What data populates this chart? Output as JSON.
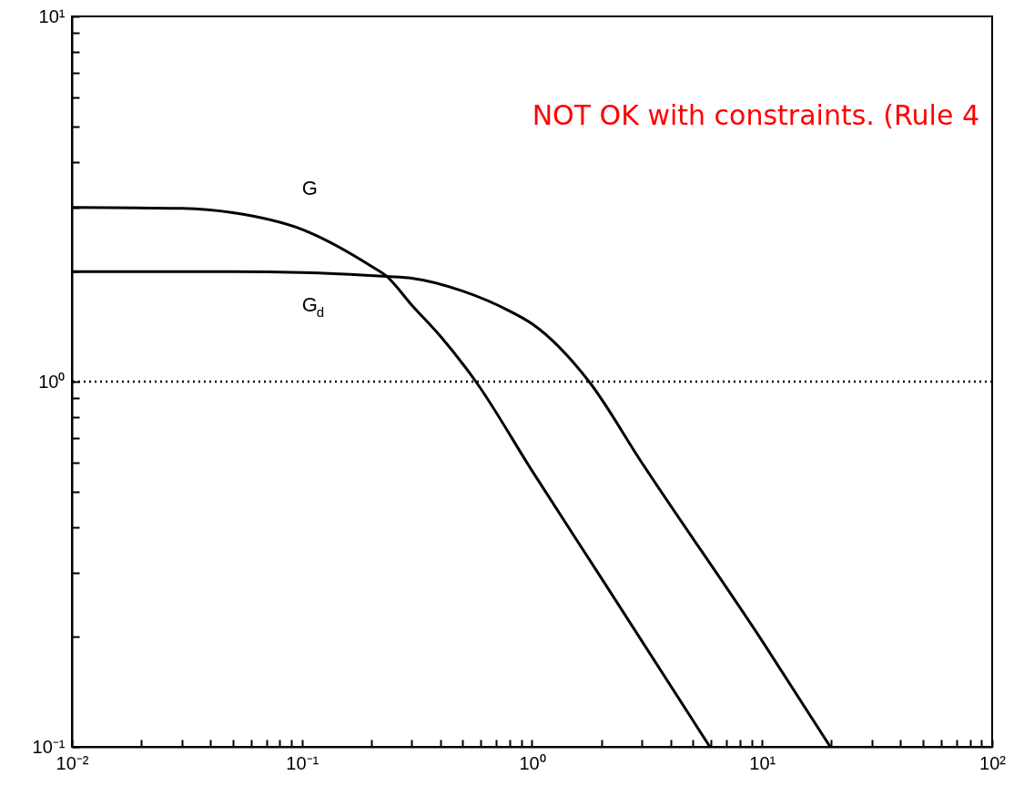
{
  "chart_data": {
    "type": "line",
    "log": "xy",
    "xlim": [
      0.01,
      100
    ],
    "ylim": [
      0.1,
      10
    ],
    "xticks": [
      {
        "value": 0.01,
        "label": "10⁻²"
      },
      {
        "value": 0.1,
        "label": "10⁻¹"
      },
      {
        "value": 1,
        "label": "10⁰"
      },
      {
        "value": 10,
        "label": "10¹"
      },
      {
        "value": 100,
        "label": "10²"
      }
    ],
    "yticks": [
      {
        "value": 0.1,
        "label": "10⁻¹"
      },
      {
        "value": 1,
        "label": "10⁰"
      },
      {
        "value": 10,
        "label": "10¹"
      }
    ],
    "grid": false,
    "marker": "none",
    "line_style": "solid",
    "series": [
      {
        "name": "G",
        "color": "#000000",
        "x": [
          0.01,
          0.03,
          0.05,
          0.1,
          0.2,
          0.234,
          0.3,
          0.4,
          0.57,
          1,
          2,
          5.93
        ],
        "values": [
          3,
          2.98,
          2.9,
          2.61,
          2.07,
          1.94,
          1.62,
          1.33,
          1,
          0.57,
          0.29,
          0.1
        ]
      },
      {
        "name": "G$_{d}$",
        "color": "#000000",
        "x": [
          0.01,
          0.05,
          0.1,
          0.234,
          0.3,
          0.5,
          0.8,
          1,
          1.77,
          3,
          10,
          19.8
        ],
        "values": [
          2,
          2,
          1.99,
          1.94,
          1.92,
          1.77,
          1.56,
          1.44,
          1,
          0.6,
          0.195,
          0.1
        ]
      }
    ],
    "ref_lines": [
      {
        "axis": "y",
        "value": 1,
        "color": "#000000",
        "line_style": "dotted"
      }
    ],
    "annotations": [
      "NOT OK with constraints. (Rule 4"
    ]
  }
}
